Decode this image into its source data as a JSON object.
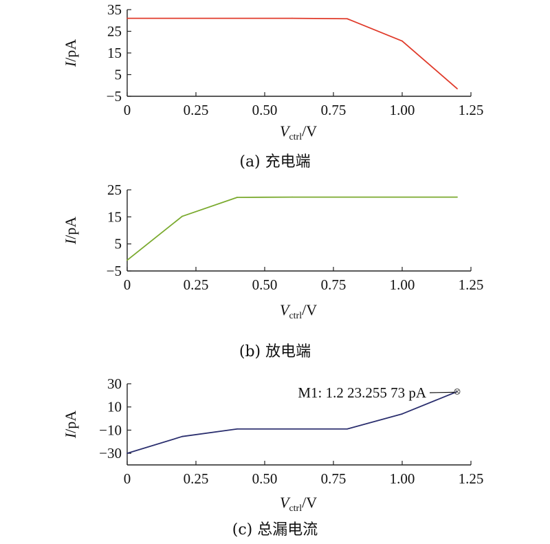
{
  "chart_data": [
    {
      "type": "line",
      "caption": "(a) 充电端",
      "xlabel": "V",
      "xlabel_sub": "ctrl",
      "xlabel_unit": "/V",
      "ylabel": "I",
      "ylabel_unit": "/pA",
      "xlim": [
        0,
        1.25
      ],
      "ylim": [
        -5,
        35
      ],
      "xticks": [
        0,
        0.25,
        0.5,
        0.75,
        1.0,
        1.25
      ],
      "xtick_labels": [
        "0",
        "0.25",
        "0.50",
        "0.75",
        "1.00",
        "1.25"
      ],
      "yticks": [
        -5,
        5,
        15,
        25,
        35
      ],
      "ytick_labels": [
        "−5",
        "5",
        "15",
        "25",
        "35"
      ],
      "grid": false,
      "series": [
        {
          "color": "#e03a2a",
          "x": [
            0,
            0.6,
            0.8,
            1.0,
            1.2
          ],
          "y": [
            31,
            31,
            30.8,
            20.5,
            -1.5
          ]
        }
      ]
    },
    {
      "type": "line",
      "caption": "(b) 放电端",
      "xlabel": "V",
      "xlabel_sub": "ctrl",
      "xlabel_unit": "/V",
      "ylabel": "I",
      "ylabel_unit": "/pA",
      "xlim": [
        0,
        1.25
      ],
      "ylim": [
        -5,
        25
      ],
      "xticks": [
        0,
        0.25,
        0.5,
        0.75,
        1.0,
        1.25
      ],
      "xtick_labels": [
        "0",
        "0.25",
        "0.50",
        "0.75",
        "1.00",
        "1.25"
      ],
      "yticks": [
        -5,
        5,
        15,
        25
      ],
      "ytick_labels": [
        "−5",
        "5",
        "15",
        "25"
      ],
      "grid": false,
      "series": [
        {
          "color": "#7aaa2e",
          "x": [
            0,
            0.2,
            0.4,
            0.6,
            1.2
          ],
          "y": [
            -1,
            15.2,
            22.2,
            22.3,
            22.3
          ]
        }
      ]
    },
    {
      "type": "line",
      "caption": "(c) 总漏电流",
      "xlabel": "V",
      "xlabel_sub": "ctrl",
      "xlabel_unit": "/V",
      "ylabel": "I",
      "ylabel_unit": "/pA",
      "xlim": [
        0,
        1.25
      ],
      "ylim": [
        -40,
        30
      ],
      "xticks": [
        0,
        0.25,
        0.5,
        0.75,
        1.0,
        1.25
      ],
      "xtick_labels": [
        "0",
        "0.25",
        "0.50",
        "0.75",
        "1.00",
        "1.25"
      ],
      "yticks": [
        -30,
        -10,
        10,
        30
      ],
      "ytick_labels": [
        "−30",
        "−10",
        "10",
        "30"
      ],
      "grid": false,
      "series": [
        {
          "color": "#2a2e6e",
          "x": [
            0,
            0.2,
            0.4,
            0.8,
            1.0,
            1.2
          ],
          "y": [
            -30,
            -15.5,
            -9,
            -9,
            4,
            23.256
          ]
        }
      ],
      "annotation": {
        "text": "M1: 1.2 23.255 73 pA",
        "x": 1.2,
        "y": 23.256
      }
    }
  ]
}
